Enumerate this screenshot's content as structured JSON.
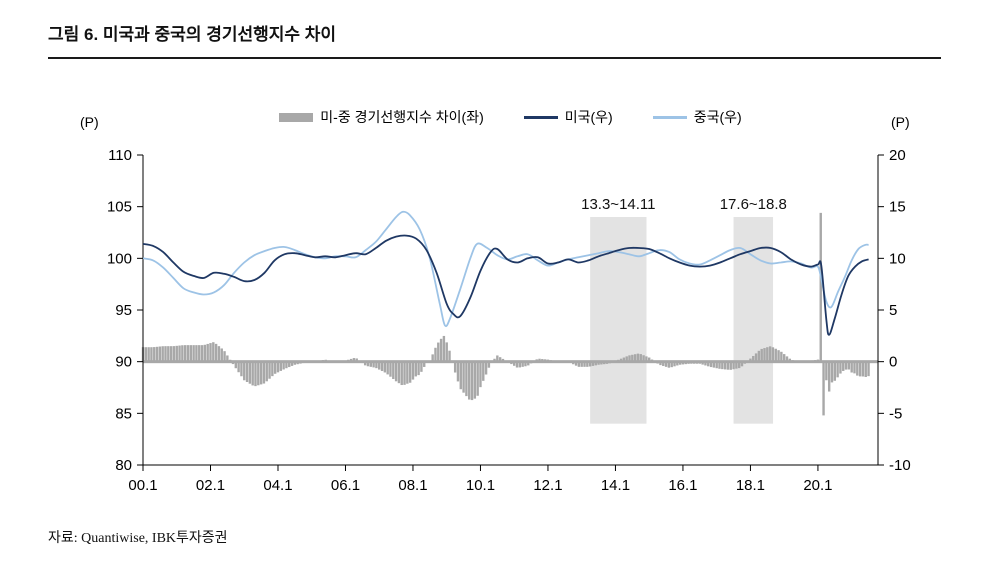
{
  "header": {
    "title": "그림 6. 미국과 중국의 경기선행지수 차이"
  },
  "footer": {
    "source": "자료: Quantiwise, IBK투자증권"
  },
  "legend": {
    "diff": "미-중 경기선행지수 차이(좌)",
    "us": "미국(우)",
    "china": "중국(우)"
  },
  "colors": {
    "us": "#1f3864",
    "china": "#9dc3e6",
    "bars": "#a8a8a8",
    "band": "#e3e3e3",
    "axis": "#000000"
  },
  "chart_data": {
    "type": "line+bar",
    "title": "그림 6. 미국과 중국의 경기선행지수 차이",
    "grid": false,
    "legend_position": "top",
    "x_axis": {
      "tick_labels": [
        "00.1",
        "02.1",
        "04.1",
        "06.1",
        "08.1",
        "10.1",
        "12.1",
        "14.1",
        "16.1",
        "18.1",
        "20.1"
      ],
      "tick_years": [
        2000,
        2002,
        2004,
        2006,
        2008,
        2010,
        2012,
        2014,
        2016,
        2018,
        2020
      ],
      "domain": [
        2000,
        2021.78
      ]
    },
    "left_axis": {
      "unit": "(P)",
      "range": [
        80,
        110
      ],
      "ticks": [
        80,
        85,
        90,
        95,
        100,
        105,
        110
      ]
    },
    "right_axis": {
      "unit": "(P)",
      "range": [
        -10,
        20
      ],
      "ticks": [
        -10,
        -5,
        0,
        5,
        10,
        15,
        20
      ]
    },
    "bands": [
      {
        "label": "13.3~14.11",
        "from": 2013.25,
        "to": 2014.92
      },
      {
        "label": "17.6~18.8",
        "from": 2017.5,
        "to": 2018.67
      }
    ],
    "band_value_range": [
      -6,
      14
    ],
    "series": {
      "us": {
        "name": "미국(우)",
        "axis": "right",
        "keypoints": [
          [
            2000.0,
            11.4
          ],
          [
            2000.3,
            11.2
          ],
          [
            2000.6,
            10.6
          ],
          [
            2000.9,
            9.6
          ],
          [
            2001.2,
            8.7
          ],
          [
            2001.5,
            8.3
          ],
          [
            2001.8,
            8.1
          ],
          [
            2002.1,
            8.6
          ],
          [
            2002.4,
            8.5
          ],
          [
            2002.7,
            8.2
          ],
          [
            2003.0,
            7.8
          ],
          [
            2003.3,
            7.9
          ],
          [
            2003.6,
            8.6
          ],
          [
            2003.9,
            9.8
          ],
          [
            2004.2,
            10.4
          ],
          [
            2004.5,
            10.5
          ],
          [
            2004.8,
            10.3
          ],
          [
            2005.1,
            10.1
          ],
          [
            2005.4,
            10.2
          ],
          [
            2005.7,
            10.1
          ],
          [
            2006.0,
            10.3
          ],
          [
            2006.3,
            10.5
          ],
          [
            2006.6,
            10.4
          ],
          [
            2006.9,
            11.0
          ],
          [
            2007.2,
            11.7
          ],
          [
            2007.5,
            12.1
          ],
          [
            2007.8,
            12.2
          ],
          [
            2008.1,
            11.9
          ],
          [
            2008.4,
            10.8
          ],
          [
            2008.7,
            8.6
          ],
          [
            2009.0,
            5.6
          ],
          [
            2009.2,
            4.6
          ],
          [
            2009.4,
            4.4
          ],
          [
            2009.7,
            6.2
          ],
          [
            2010.0,
            8.8
          ],
          [
            2010.3,
            10.6
          ],
          [
            2010.5,
            10.9
          ],
          [
            2010.8,
            9.9
          ],
          [
            2011.1,
            9.6
          ],
          [
            2011.4,
            10.0
          ],
          [
            2011.7,
            10.1
          ],
          [
            2012.0,
            9.5
          ],
          [
            2012.3,
            9.6
          ],
          [
            2012.6,
            9.9
          ],
          [
            2012.9,
            9.6
          ],
          [
            2013.2,
            9.8
          ],
          [
            2013.5,
            10.2
          ],
          [
            2013.8,
            10.5
          ],
          [
            2014.1,
            10.8
          ],
          [
            2014.4,
            11.0
          ],
          [
            2014.7,
            11.0
          ],
          [
            2015.0,
            10.9
          ],
          [
            2015.3,
            10.5
          ],
          [
            2015.6,
            10.0
          ],
          [
            2015.9,
            9.6
          ],
          [
            2016.2,
            9.3
          ],
          [
            2016.5,
            9.2
          ],
          [
            2016.8,
            9.3
          ],
          [
            2017.1,
            9.6
          ],
          [
            2017.4,
            10.0
          ],
          [
            2017.7,
            10.4
          ],
          [
            2018.0,
            10.7
          ],
          [
            2018.3,
            11.0
          ],
          [
            2018.6,
            11.0
          ],
          [
            2018.9,
            10.6
          ],
          [
            2019.2,
            9.9
          ],
          [
            2019.5,
            9.4
          ],
          [
            2019.8,
            9.2
          ],
          [
            2020.0,
            9.4
          ],
          [
            2020.1,
            9.3
          ],
          [
            2020.25,
            4.0
          ],
          [
            2020.33,
            2.6
          ],
          [
            2020.5,
            4.2
          ],
          [
            2020.7,
            6.5
          ],
          [
            2020.9,
            8.3
          ],
          [
            2021.1,
            9.2
          ],
          [
            2021.3,
            9.7
          ],
          [
            2021.5,
            9.9
          ]
        ]
      },
      "china": {
        "name": "중국(우)",
        "axis": "right",
        "keypoints": [
          [
            2000.0,
            10.0
          ],
          [
            2000.3,
            9.8
          ],
          [
            2000.6,
            9.1
          ],
          [
            2000.9,
            8.1
          ],
          [
            2001.2,
            7.1
          ],
          [
            2001.5,
            6.7
          ],
          [
            2001.8,
            6.5
          ],
          [
            2002.1,
            6.7
          ],
          [
            2002.4,
            7.4
          ],
          [
            2002.7,
            8.6
          ],
          [
            2003.0,
            9.6
          ],
          [
            2003.3,
            10.3
          ],
          [
            2003.6,
            10.7
          ],
          [
            2003.9,
            11.0
          ],
          [
            2004.2,
            11.1
          ],
          [
            2004.5,
            10.8
          ],
          [
            2004.8,
            10.4
          ],
          [
            2005.1,
            10.1
          ],
          [
            2005.4,
            10.0
          ],
          [
            2005.7,
            10.2
          ],
          [
            2006.0,
            10.2
          ],
          [
            2006.3,
            10.1
          ],
          [
            2006.6,
            10.8
          ],
          [
            2006.9,
            11.6
          ],
          [
            2007.2,
            12.8
          ],
          [
            2007.5,
            14.0
          ],
          [
            2007.7,
            14.5
          ],
          [
            2007.9,
            14.2
          ],
          [
            2008.2,
            12.8
          ],
          [
            2008.5,
            10.0
          ],
          [
            2008.8,
            5.5
          ],
          [
            2008.95,
            3.5
          ],
          [
            2009.1,
            4.2
          ],
          [
            2009.4,
            7.0
          ],
          [
            2009.7,
            10.0
          ],
          [
            2009.9,
            11.4
          ],
          [
            2010.2,
            11.0
          ],
          [
            2010.5,
            10.3
          ],
          [
            2010.8,
            9.9
          ],
          [
            2011.1,
            10.2
          ],
          [
            2011.4,
            10.4
          ],
          [
            2011.7,
            9.8
          ],
          [
            2012.0,
            9.3
          ],
          [
            2012.3,
            9.6
          ],
          [
            2012.6,
            9.9
          ],
          [
            2012.9,
            10.1
          ],
          [
            2013.2,
            10.3
          ],
          [
            2013.5,
            10.5
          ],
          [
            2013.8,
            10.7
          ],
          [
            2014.1,
            10.6
          ],
          [
            2014.4,
            10.4
          ],
          [
            2014.7,
            10.2
          ],
          [
            2015.0,
            10.5
          ],
          [
            2015.3,
            10.8
          ],
          [
            2015.6,
            10.6
          ],
          [
            2015.9,
            9.9
          ],
          [
            2016.2,
            9.5
          ],
          [
            2016.5,
            9.4
          ],
          [
            2016.8,
            9.8
          ],
          [
            2017.1,
            10.3
          ],
          [
            2017.4,
            10.8
          ],
          [
            2017.7,
            11.0
          ],
          [
            2018.0,
            10.4
          ],
          [
            2018.3,
            9.8
          ],
          [
            2018.6,
            9.5
          ],
          [
            2018.9,
            9.6
          ],
          [
            2019.2,
            9.7
          ],
          [
            2019.5,
            9.5
          ],
          [
            2019.8,
            9.1
          ],
          [
            2020.0,
            9.2
          ],
          [
            2020.1,
            8.0
          ],
          [
            2020.25,
            5.8
          ],
          [
            2020.4,
            5.3
          ],
          [
            2020.6,
            6.8
          ],
          [
            2020.8,
            8.2
          ],
          [
            2021.0,
            9.8
          ],
          [
            2021.2,
            10.9
          ],
          [
            2021.4,
            11.3
          ],
          [
            2021.5,
            11.3
          ]
        ]
      },
      "diff": {
        "name": "미-중 경기선행지수 차이(좌)",
        "axis": "left",
        "note": "plotted as bars around left-axis 90 (= right-axis 0); value = us - china",
        "monthly_from": 2000.0,
        "monthly_to": 2021.5,
        "overrides": [
          [
            2020.083,
            14.4
          ],
          [
            2020.167,
            -5.2
          ]
        ]
      }
    }
  }
}
